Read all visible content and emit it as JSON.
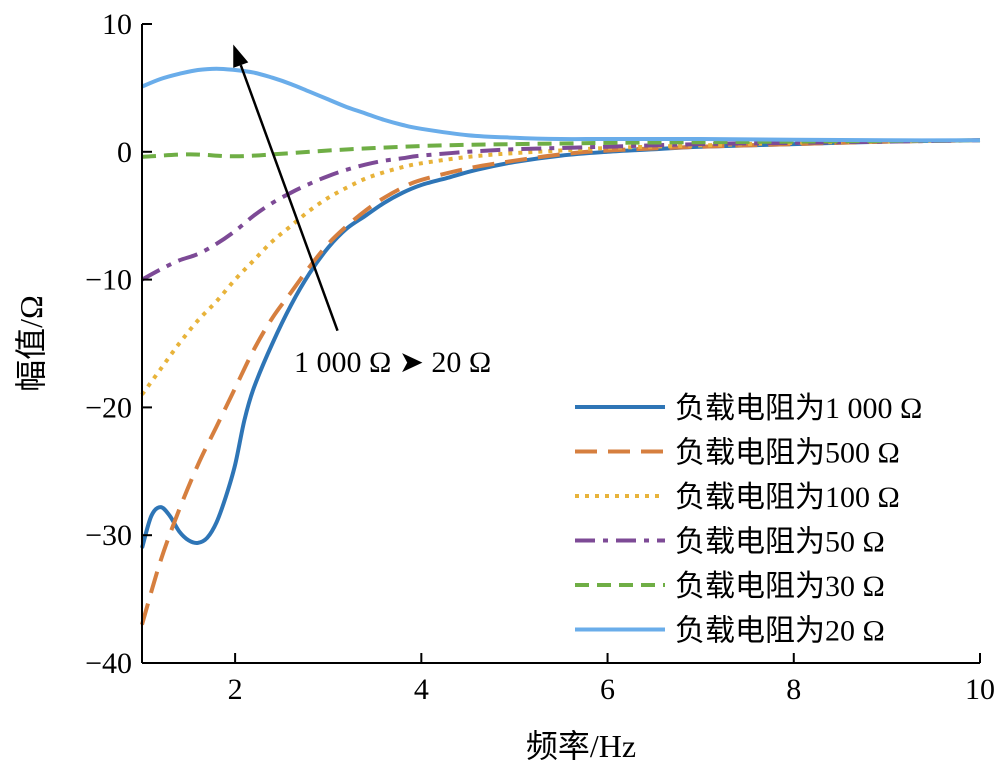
{
  "chart_data": {
    "type": "line",
    "xlabel": "频率/Hz",
    "ylabel": "幅值/Ω",
    "xlim": [
      1,
      10
    ],
    "ylim": [
      -40,
      10
    ],
    "xticks": [
      2,
      4,
      6,
      8,
      10
    ],
    "yticks": [
      -40,
      -30,
      -20,
      -10,
      0,
      10
    ],
    "xtick_labels": [
      "2",
      "4",
      "6",
      "8",
      "10"
    ],
    "ytick_labels": [
      "−40",
      "−30",
      "−20",
      "−10",
      "0",
      "10"
    ],
    "grid": false,
    "legend_position": "right",
    "annotation": {
      "text": "1 000 Ω ➤ 20 Ω",
      "arrow_from": [
        3.1,
        -14.0
      ],
      "arrow_to": [
        1.98,
        8.4
      ]
    },
    "series": [
      {
        "name": "负载电阻为1 000 Ω",
        "color": "#2e75b6",
        "dash": "solid",
        "x": [
          1.0,
          1.1,
          1.2,
          1.3,
          1.4,
          1.5,
          1.6,
          1.7,
          1.8,
          1.9,
          2.0,
          2.1,
          2.2,
          2.4,
          2.6,
          2.8,
          3.0,
          3.2,
          3.4,
          3.6,
          3.8,
          4.0,
          4.3,
          4.6,
          5.0,
          5.5,
          6.0,
          6.5,
          7.0,
          8.0,
          9.0,
          10.0
        ],
        "y": [
          -31.0,
          -28.5,
          -27.8,
          -28.5,
          -29.7,
          -30.4,
          -30.6,
          -30.2,
          -29.0,
          -27.0,
          -24.5,
          -21.0,
          -18.5,
          -15.0,
          -12.0,
          -9.5,
          -7.5,
          -6.0,
          -5.0,
          -4.0,
          -3.2,
          -2.6,
          -2.0,
          -1.4,
          -0.8,
          -0.3,
          0.0,
          0.2,
          0.4,
          0.6,
          0.8,
          0.9
        ]
      },
      {
        "name": "负载电阻为500 Ω",
        "color": "#d67f3f",
        "dash": "long-dash",
        "x": [
          1.0,
          1.2,
          1.4,
          1.6,
          1.8,
          2.0,
          2.2,
          2.4,
          2.6,
          2.8,
          3.0,
          3.2,
          3.4,
          3.6,
          3.8,
          4.0,
          4.5,
          5.0,
          5.5,
          6.0,
          7.0,
          8.0,
          9.0,
          10.0
        ],
        "y": [
          -37.0,
          -32.0,
          -28.0,
          -24.5,
          -21.5,
          -18.5,
          -15.5,
          -13.0,
          -11.0,
          -9.0,
          -7.2,
          -5.8,
          -4.6,
          -3.6,
          -2.8,
          -2.2,
          -1.3,
          -0.7,
          -0.2,
          0.1,
          0.4,
          0.6,
          0.8,
          0.9
        ]
      },
      {
        "name": "负载电阻为100 Ω",
        "color": "#e8b33a",
        "dash": "dotted",
        "x": [
          1.0,
          1.2,
          1.4,
          1.6,
          1.8,
          2.0,
          2.2,
          2.4,
          2.6,
          2.8,
          3.0,
          3.2,
          3.4,
          3.6,
          3.8,
          4.0,
          4.5,
          5.0,
          5.5,
          6.0,
          7.0,
          8.0,
          9.0,
          10.0
        ],
        "y": [
          -19.0,
          -17.0,
          -15.0,
          -13.2,
          -11.7,
          -10.0,
          -8.5,
          -7.0,
          -5.8,
          -4.6,
          -3.6,
          -2.8,
          -2.1,
          -1.6,
          -1.2,
          -0.9,
          -0.4,
          -0.1,
          0.1,
          0.3,
          0.5,
          0.7,
          0.8,
          0.9
        ]
      },
      {
        "name": "负载电阻为50 Ω",
        "color": "#7d4a96",
        "dash": "dash-dot",
        "x": [
          1.0,
          1.2,
          1.4,
          1.6,
          1.8,
          2.0,
          2.2,
          2.4,
          2.6,
          2.8,
          3.0,
          3.2,
          3.4,
          3.6,
          3.8,
          4.0,
          4.5,
          5.0,
          5.5,
          6.0,
          7.0,
          8.0,
          9.0,
          10.0
        ],
        "y": [
          -10.0,
          -9.2,
          -8.5,
          -8.0,
          -7.2,
          -6.2,
          -5.0,
          -4.0,
          -3.2,
          -2.5,
          -1.9,
          -1.4,
          -1.0,
          -0.7,
          -0.5,
          -0.3,
          0.0,
          0.2,
          0.3,
          0.4,
          0.6,
          0.7,
          0.8,
          0.9
        ]
      },
      {
        "name": "负载电阻为30 Ω",
        "color": "#6fae45",
        "dash": "dash",
        "x": [
          1.0,
          1.5,
          2.0,
          2.5,
          3.0,
          3.5,
          4.0,
          4.5,
          5.0,
          5.5,
          6.0,
          7.0,
          8.0,
          9.0,
          10.0
        ],
        "y": [
          -0.4,
          -0.2,
          -0.35,
          -0.15,
          0.1,
          0.3,
          0.45,
          0.55,
          0.6,
          0.65,
          0.7,
          0.75,
          0.8,
          0.85,
          0.9
        ]
      },
      {
        "name": "负载电阻为20 Ω",
        "color": "#6aadea",
        "dash": "solid",
        "x": [
          1.0,
          1.2,
          1.4,
          1.6,
          1.8,
          2.0,
          2.2,
          2.4,
          2.6,
          2.8,
          3.0,
          3.2,
          3.4,
          3.6,
          3.8,
          4.0,
          4.5,
          5.0,
          5.5,
          6.0,
          7.0,
          8.0,
          9.0,
          10.0
        ],
        "y": [
          5.1,
          5.7,
          6.1,
          6.4,
          6.5,
          6.4,
          6.2,
          5.8,
          5.3,
          4.7,
          4.1,
          3.5,
          3.0,
          2.5,
          2.1,
          1.8,
          1.3,
          1.1,
          1.0,
          1.0,
          1.0,
          0.95,
          0.9,
          0.9
        ]
      }
    ]
  }
}
